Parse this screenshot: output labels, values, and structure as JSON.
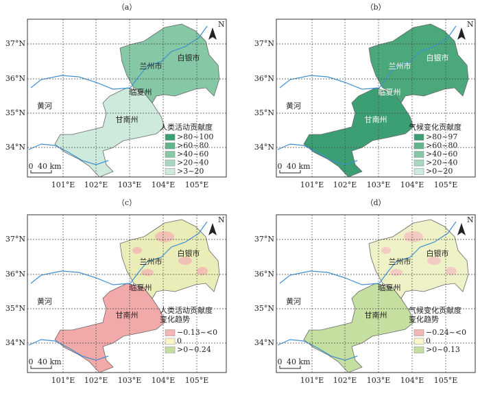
{
  "panels": [
    {
      "label": "（a）",
      "legend": {
        "title": [
          "人类活动贡献度"
        ],
        "items": [
          ">80~100",
          ">60~80",
          ">40~60",
          ">20~40",
          ">3~20"
        ]
      }
    },
    {
      "label": "（b）",
      "legend": {
        "title": [
          "气候变化贡献度"
        ],
        "items": [
          ">80~97",
          ">60~80",
          ">40~60",
          ">20~40",
          ">0~20"
        ]
      }
    },
    {
      "label": "（c）",
      "legend": {
        "title": [
          "人类活动贡献度",
          "变化趋势"
        ],
        "items": [
          "−0.13~<0",
          "0",
          ">0~0.24"
        ]
      }
    },
    {
      "label": "（d）",
      "legend": {
        "title": [
          "气候变化贡献度",
          "变化趋势"
        ],
        "items": [
          "−0.24~<0",
          "0",
          ">0~0.13"
        ]
      }
    }
  ],
  "region_labels": [
    "白银市",
    "兰州市",
    "临夏州",
    "甘南州",
    "黄河"
  ],
  "x_ticks": [
    "101°E",
    "102°E",
    "103°E",
    "104°E",
    "105°E"
  ],
  "y_ticks": [
    "37°N",
    "36°N",
    "35°N",
    "34°N"
  ],
  "scale": [
    "0",
    "40 km"
  ],
  "north": "N"
}
